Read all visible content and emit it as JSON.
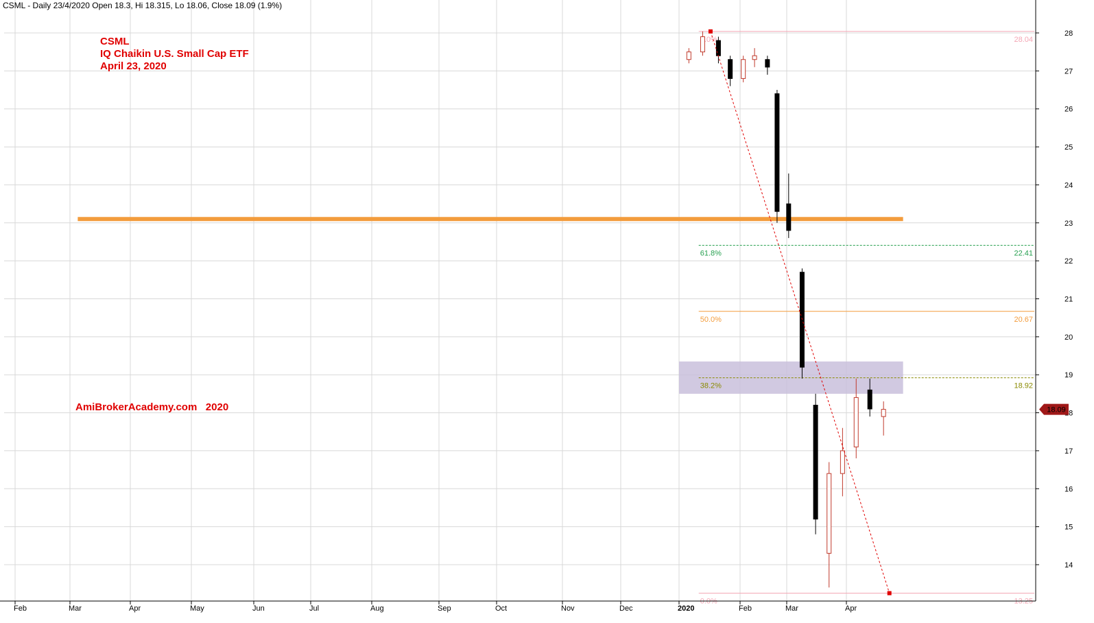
{
  "header": {
    "symbol_line": "CSML - Daily 23/4/2020 Open 18.3, Hi 18.315, Lo 18.06, Close 18.09 (1.9%)"
  },
  "title_block": {
    "line1": "CSML",
    "line2": "IQ Chaikin U.S. Small Cap ETF",
    "line3": "April 23, 2020"
  },
  "watermark": "AmiBrokerAcademy.com   2020",
  "price_badge": "18.09",
  "colors": {
    "up_candle": "#c0392b",
    "down_candle": "#000000",
    "support_line": "#f39c3c",
    "resistance_zone": "#c9c0dc",
    "fib_0": "#f4a7b5",
    "fib_382": "#8a8a00",
    "fib_50": "#f39c3c",
    "fib_618": "#27a050",
    "fib_100": "#f4a7b5",
    "trend_line": "#e00000",
    "badge": "#a01818",
    "grid": "#d8d8d8"
  },
  "chart_data": {
    "type": "candlestick",
    "title": "CSML",
    "ylim": [
      13.3,
      28.4
    ],
    "y_ticks": [
      "28",
      "27",
      "26",
      "25",
      "24",
      "23",
      "22",
      "21",
      "20",
      "19",
      "18",
      "17",
      "16",
      "15",
      "14"
    ],
    "x_ticks": [
      "Feb",
      "Mar",
      "Apr",
      "May",
      "Jun",
      "Jul",
      "Aug",
      "Sep",
      "Oct",
      "Nov",
      "Dec",
      "2020",
      "Feb",
      "Mar",
      "Apr"
    ],
    "x_tick_dates": [
      "2019-02-01",
      "2019-03-01",
      "2019-04-01",
      "2019-05-01",
      "2019-06-01",
      "2019-07-01",
      "2019-08-01",
      "2019-09-01",
      "2019-10-01",
      "2019-11-01",
      "2019-12-01",
      "2020-01-01",
      "2020-02-01",
      "2020-03-01",
      "2020-04-01"
    ],
    "grid": true,
    "support_level": 23.1,
    "resistance_zone": [
      18.5,
      19.35
    ],
    "fibonacci": {
      "high": 28.04,
      "low": 13.25,
      "high_date": "2020-01-17",
      "low_date": "2020-04-23",
      "levels": [
        {
          "label": "0.0%",
          "price": "28.04",
          "value": 28.04
        },
        {
          "label": "38.2%",
          "price": "18.92",
          "value": 18.92
        },
        {
          "label": "50.0%",
          "price": "20.67",
          "value": 20.67
        },
        {
          "label": "61.8%",
          "price": "22.41",
          "value": 22.41
        },
        {
          "label": "0.0%",
          "price": "13.25",
          "value": 13.25
        }
      ]
    },
    "last_close": 18.09,
    "ohlc_2020": [
      [
        "2020-01-06",
        27.3,
        27.6,
        27.2,
        27.5
      ],
      [
        "2020-01-13",
        27.5,
        28.04,
        27.4,
        27.9
      ],
      [
        "2020-01-21",
        27.8,
        27.9,
        27.2,
        27.4
      ],
      [
        "2020-01-27",
        27.3,
        27.4,
        26.6,
        26.8
      ],
      [
        "2020-02-03",
        26.8,
        27.4,
        26.7,
        27.3
      ],
      [
        "2020-02-10",
        27.3,
        27.6,
        27.1,
        27.4
      ],
      [
        "2020-02-18",
        27.3,
        27.4,
        26.9,
        27.1
      ],
      [
        "2020-02-24",
        26.4,
        26.5,
        23.0,
        23.3
      ],
      [
        "2020-03-02",
        23.5,
        24.3,
        22.6,
        22.8
      ],
      [
        "2020-03-09",
        21.7,
        21.8,
        18.9,
        19.2
      ],
      [
        "2020-03-16",
        18.2,
        18.5,
        14.8,
        15.2
      ],
      [
        "2020-03-23",
        14.3,
        16.7,
        13.4,
        16.4
      ],
      [
        "2020-03-30",
        16.4,
        17.6,
        15.8,
        17.0
      ],
      [
        "2020-04-06",
        17.1,
        18.9,
        16.8,
        18.4
      ],
      [
        "2020-04-13",
        18.6,
        18.9,
        17.9,
        18.1
      ],
      [
        "2020-04-20",
        17.9,
        18.3,
        17.4,
        18.09
      ]
    ]
  }
}
